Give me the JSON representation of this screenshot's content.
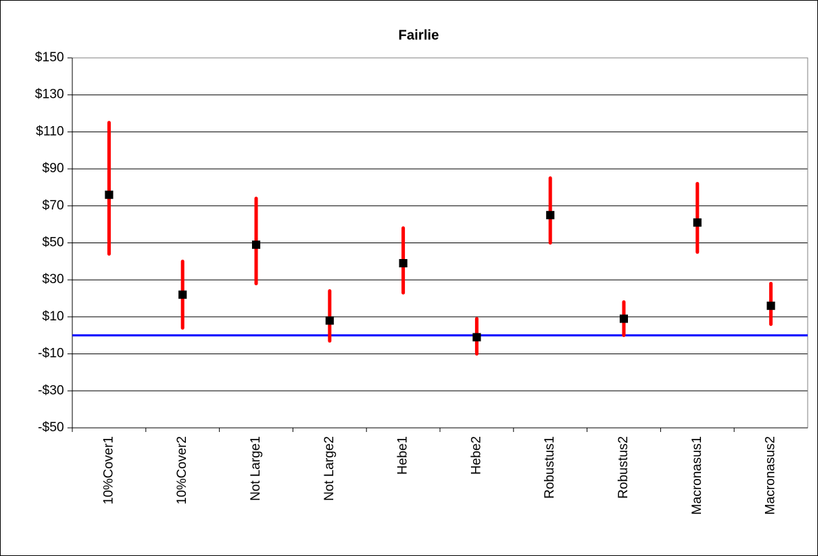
{
  "chart_data": {
    "type": "errorbar",
    "title": "Fairlie",
    "categories": [
      "10%Cover1",
      "10%Cover2",
      "Not Large1",
      "Not Large2",
      "Hebe1",
      "Hebe2",
      "Robustus1",
      "Robustus2",
      "Macronasus1",
      "Macronasus2"
    ],
    "series": [
      {
        "color": "#000000",
        "error_color": "#ff0000",
        "values": [
          76,
          22,
          49,
          8,
          39,
          -1,
          65,
          9,
          61,
          16
        ],
        "low": [
          44,
          4,
          28,
          -3,
          23,
          -10,
          50,
          0,
          45,
          6
        ],
        "high": [
          115,
          40,
          74,
          24,
          58,
          9,
          85,
          18,
          82,
          28
        ]
      }
    ],
    "reference_line": {
      "value": 0,
      "color": "#0000ff"
    },
    "ylim": [
      -50,
      150
    ],
    "yticks": [
      {
        "value": -50,
        "label": "-$50"
      },
      {
        "value": -30,
        "label": "-$30"
      },
      {
        "value": -10,
        "label": "-$10"
      },
      {
        "value": 10,
        "label": "$10"
      },
      {
        "value": 30,
        "label": "$30"
      },
      {
        "value": 50,
        "label": "$50"
      },
      {
        "value": 70,
        "label": "$70"
      },
      {
        "value": 90,
        "label": "$90"
      },
      {
        "value": 110,
        "label": "$110"
      },
      {
        "value": 130,
        "label": "$130"
      },
      {
        "value": 150,
        "label": "$150"
      }
    ],
    "grid": true
  }
}
